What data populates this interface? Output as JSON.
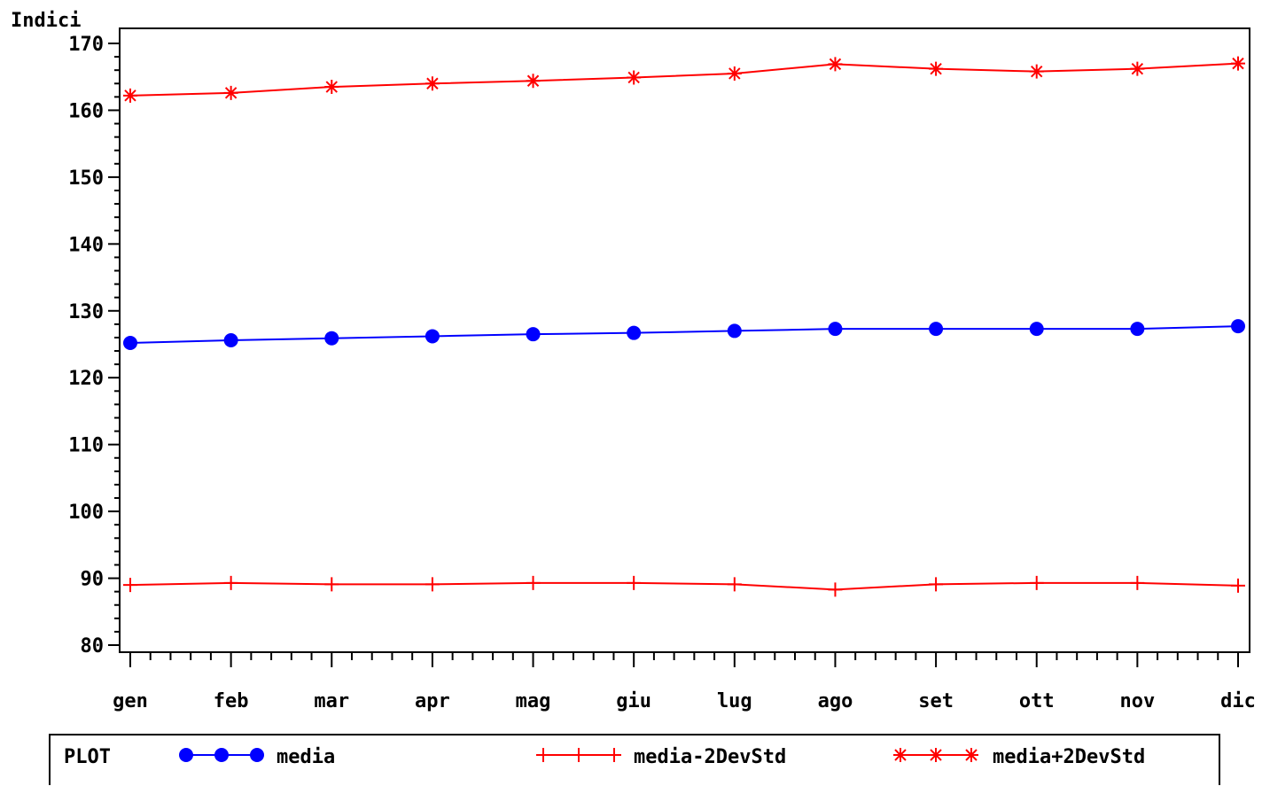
{
  "chart_data": {
    "type": "line",
    "ylabel": "Indici",
    "xlabel": "",
    "ylim": [
      80,
      170
    ],
    "yticks": [
      80,
      90,
      100,
      110,
      120,
      130,
      140,
      150,
      160,
      170
    ],
    "categories": [
      "gen",
      "feb",
      "mar",
      "apr",
      "mag",
      "giu",
      "lug",
      "ago",
      "set",
      "ott",
      "nov",
      "dic"
    ],
    "series": [
      {
        "name": "media",
        "color": "#0000ff",
        "marker": "dot",
        "values": [
          125.2,
          125.6,
          125.9,
          126.2,
          126.5,
          126.7,
          127.0,
          127.3,
          127.3,
          127.3,
          127.3,
          127.7
        ]
      },
      {
        "name": "media-2DevStd",
        "color": "#ff0000",
        "marker": "plus",
        "values": [
          89.0,
          89.3,
          89.1,
          89.1,
          89.3,
          89.3,
          89.1,
          88.3,
          89.1,
          89.3,
          89.3,
          88.9
        ]
      },
      {
        "name": "media+2DevStd",
        "color": "#ff0000",
        "marker": "star",
        "values": [
          162.2,
          162.6,
          163.5,
          164.0,
          164.4,
          164.9,
          165.5,
          166.9,
          166.2,
          165.8,
          166.2,
          167.0
        ]
      }
    ],
    "legend": {
      "title": "PLOT",
      "position": "bottom"
    },
    "grid": false
  }
}
